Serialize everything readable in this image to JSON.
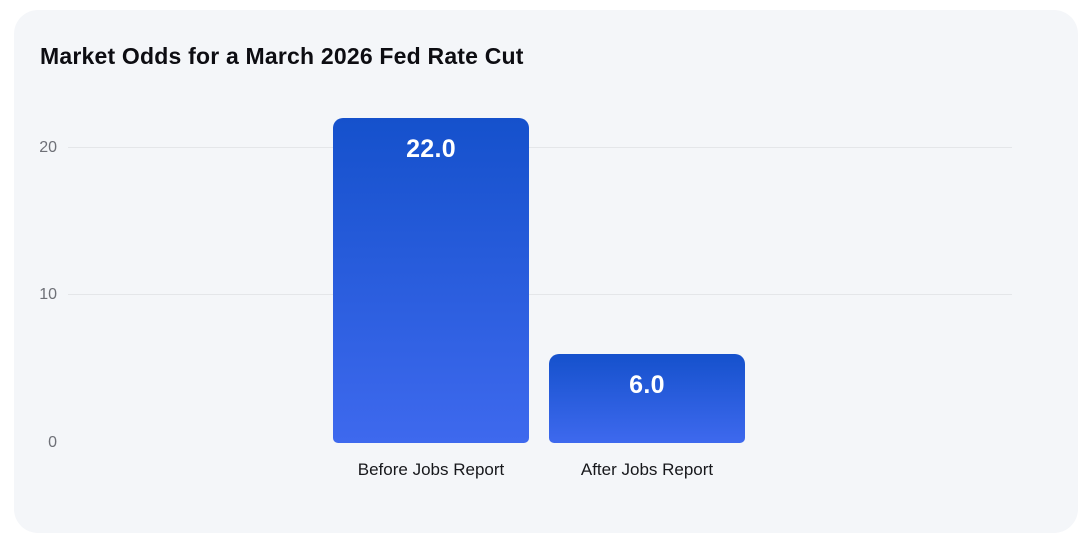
{
  "card": {
    "title": "Market Odds for a March 2026 Fed Rate Cut"
  },
  "chart_data": {
    "type": "bar",
    "title": "Market Odds for a March 2026 Fed Rate Cut",
    "categories": [
      "Before Jobs Report",
      "After Jobs Report"
    ],
    "values": [
      22.0,
      6.0
    ],
    "value_labels": [
      "22.0",
      "6.0"
    ],
    "xlabel": "",
    "ylabel": "",
    "yticks": [
      0,
      10,
      20
    ],
    "gridline_ticks": [
      10,
      20
    ],
    "ylim": [
      0,
      23.25
    ],
    "grid": "horizontal",
    "legend": "none",
    "colors": {
      "bar_gradient_top": "#1551cc",
      "bar_gradient_bottom": "#3e69ee",
      "value_label": "#ffffff",
      "gridline": "#e4e6e9",
      "axis_tick_label": "#6e7077",
      "category_label": "#17181c",
      "card_background": "#f4f6f9",
      "page_background": "#ffffff",
      "title": "#0d0d12"
    }
  }
}
